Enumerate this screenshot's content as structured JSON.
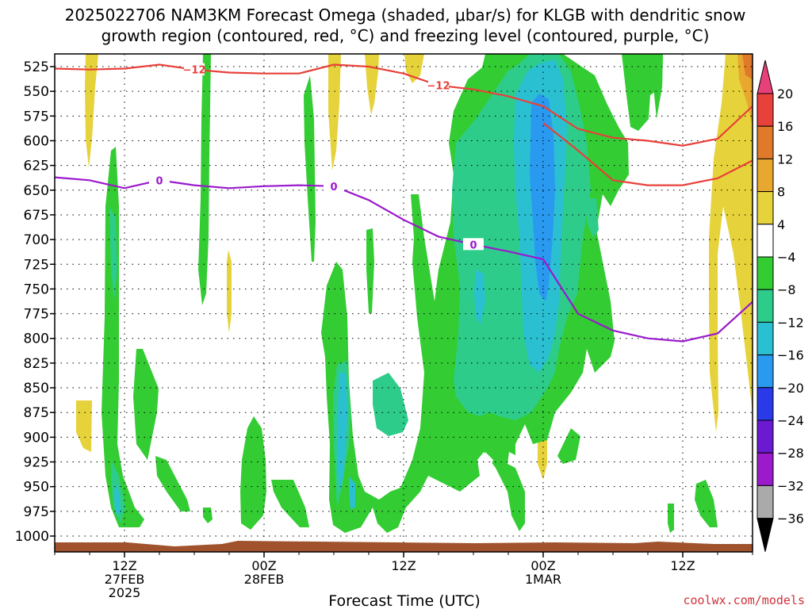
{
  "title_line1": "2025022706 NAM3KM Forecast Omega (shaded, μbar/s) for KLGB with dendritic snow",
  "title_line2": "growth region (contoured, red, °C) and freezing level (contoured, purple, °C)",
  "x_axis_label": "Forecast Time (UTC)",
  "credit": "coolwx.com/models",
  "colors": {
    "light_green": "#33cc33",
    "teal_green": "#2ecc8a",
    "cyan": "#2ac0d2",
    "blue": "#2a9af0",
    "yellow": "#e6d23a",
    "orange": "#e08a2a",
    "ground": "#a0522d",
    "red_contour": "#e8403a",
    "purple_contour": "#9a1acc"
  },
  "chart_data": {
    "type": "heatmap",
    "title": "2025022706 NAM3KM Forecast Omega (shaded, μbar/s) for KLGB with dendritic snow growth region (contoured, red, °C) and freezing level (contoured, purple, °C)",
    "xlabel": "Forecast Time (UTC)",
    "ylabel": "",
    "y_ticks": [
      525,
      550,
      575,
      600,
      625,
      650,
      675,
      700,
      725,
      750,
      775,
      800,
      825,
      850,
      875,
      900,
      925,
      950,
      975,
      1000
    ],
    "x_ticks": [
      {
        "hour": 6,
        "labels": [
          "12Z",
          "27FEB",
          "2025"
        ]
      },
      {
        "hour": 18,
        "labels": [
          "00Z",
          "28FEB"
        ]
      },
      {
        "hour": 30,
        "labels": [
          "12Z"
        ]
      },
      {
        "hour": 42,
        "labels": [
          "00Z",
          "1MAR"
        ]
      },
      {
        "hour": 54,
        "labels": [
          "12Z"
        ]
      }
    ],
    "xlim_hours": [
      0,
      60
    ],
    "colorbar": {
      "labels": [
        "20",
        "16",
        "12",
        "8",
        "4",
        "−4",
        "−8",
        "−12",
        "−16",
        "−20",
        "−24",
        "−28",
        "−32",
        "−36"
      ],
      "colors": [
        "#e8407a",
        "#e8403a",
        "#e07a2a",
        "#e8a830",
        "#e6d23a",
        "#ffffff",
        "#33cc33",
        "#2ecc8a",
        "#2ac0d2",
        "#2a9af0",
        "#2a3ae8",
        "#6a1ad0",
        "#9a1acc",
        "#aaaaaa",
        "#000000"
      ]
    },
    "contours": [
      {
        "name": "-12",
        "color": "#e8403a",
        "label": "−12",
        "x": [
          0,
          3,
          6,
          9,
          12,
          15,
          18,
          21,
          24,
          27,
          30,
          33,
          36,
          39,
          42,
          45,
          48,
          51,
          54,
          57,
          60
        ],
        "y": [
          527,
          528,
          527,
          523,
          528,
          531,
          532,
          532,
          523,
          525,
          532,
          544,
          548,
          555,
          565,
          588,
          597,
          600,
          605,
          598,
          565
        ]
      },
      {
        "name": "-12 lower",
        "color": "#e8403a",
        "label": "",
        "x": [
          42,
          45,
          48,
          51,
          54,
          57,
          60
        ],
        "y": [
          582,
          610,
          640,
          645,
          645,
          638,
          620
        ]
      },
      {
        "name": "0",
        "color": "#9a1acc",
        "label": "0",
        "x": [
          0,
          3,
          6,
          9,
          12,
          15,
          18,
          21,
          24,
          27,
          30,
          33,
          36,
          39,
          42,
          45,
          48,
          51,
          54,
          57,
          60
        ],
        "y": [
          637,
          640,
          648,
          640,
          645,
          648,
          646,
          645,
          646,
          660,
          680,
          697,
          705,
          712,
          720,
          775,
          792,
          800,
          803,
          795,
          763
        ]
      }
    ]
  }
}
